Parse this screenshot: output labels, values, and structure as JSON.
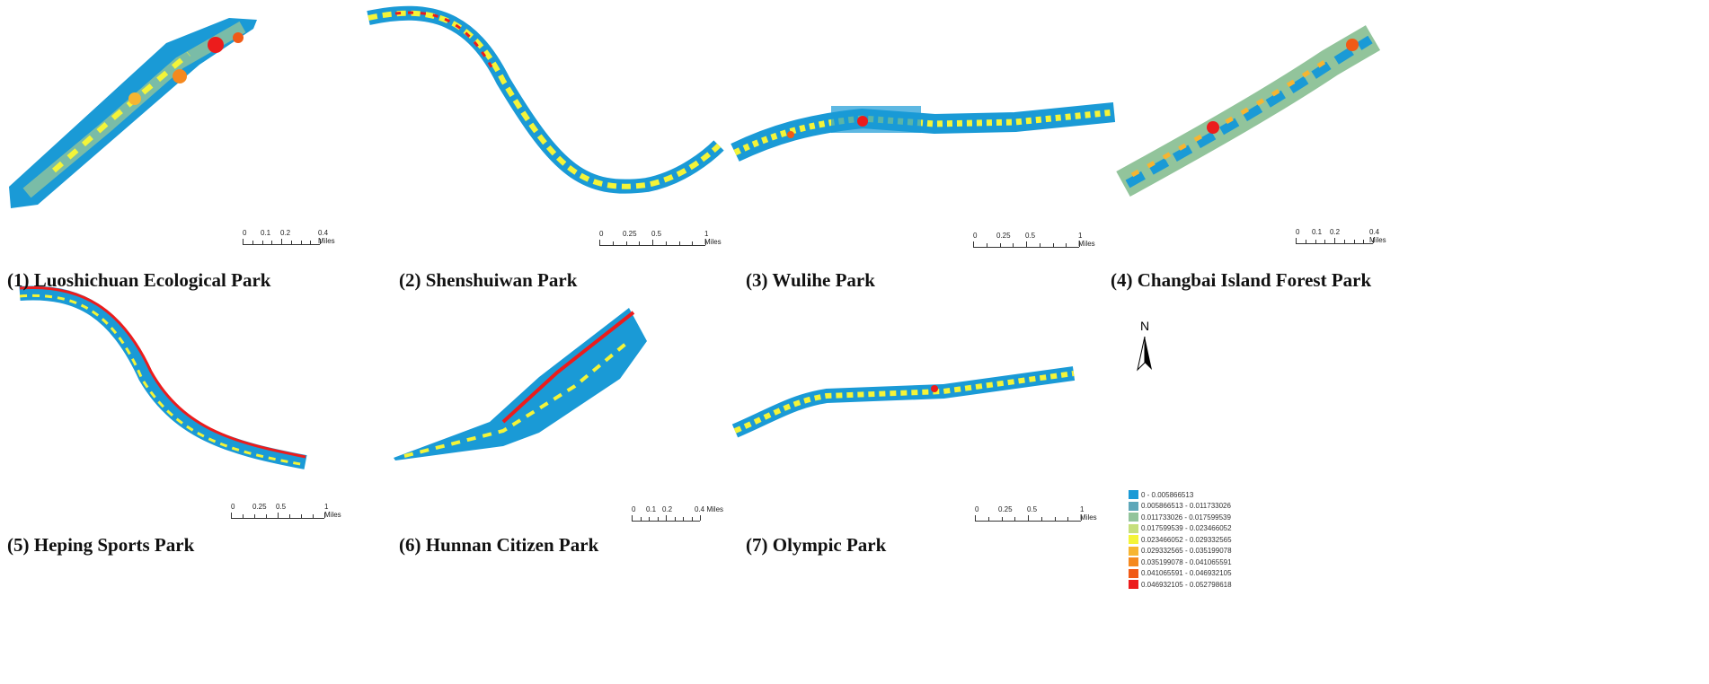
{
  "parks": [
    {
      "title": "(1) Luoshichuan Ecological Park",
      "scale": [
        "0",
        "0.1",
        "0.2",
        "0.4 Miles"
      ]
    },
    {
      "title": "(2) Shenshuiwan Park",
      "scale": [
        "0",
        "0.25",
        "0.5",
        "1 Miles"
      ]
    },
    {
      "title": "(3) Wulihe Park",
      "scale": [
        "0",
        "0.25",
        "0.5",
        "1 Miles"
      ]
    },
    {
      "title": "(4) Changbai Island Forest Park",
      "scale": [
        "0",
        "0.1",
        "0.2",
        "0.4 Miles"
      ]
    },
    {
      "title": "(5) Heping Sports Park",
      "scale": [
        "0",
        "0.25",
        "0.5",
        "1 Miles"
      ]
    },
    {
      "title": "(6) Hunnan Citizen Park",
      "scale": [
        "0",
        "0.1",
        "0.2",
        "0.4 Miles"
      ]
    },
    {
      "title": "(7) Olympic Park",
      "scale": [
        "0",
        "0.25",
        "0.5",
        "1 Miles"
      ]
    }
  ],
  "north_arrow": {
    "label": "N"
  },
  "legend": [
    {
      "label": "0 - 0.005866513",
      "color": "#1a9ad6"
    },
    {
      "label": "0.005866513 - 0.011733026",
      "color": "#5ea7b9"
    },
    {
      "label": "0.011733026 - 0.017599539",
      "color": "#92c49b"
    },
    {
      "label": "0.017599539 - 0.023466052",
      "color": "#c6df7c"
    },
    {
      "label": "0.023466052 - 0.029332565",
      "color": "#f4f438"
    },
    {
      "label": "0.029332565 - 0.035199078",
      "color": "#f7b531"
    },
    {
      "label": "0.035199078 - 0.041065591",
      "color": "#f5891f"
    },
    {
      "label": "0.041065591 - 0.046932105",
      "color": "#f15a16"
    },
    {
      "label": "0.046932105 - 0.052798618",
      "color": "#ec1c1c"
    }
  ]
}
